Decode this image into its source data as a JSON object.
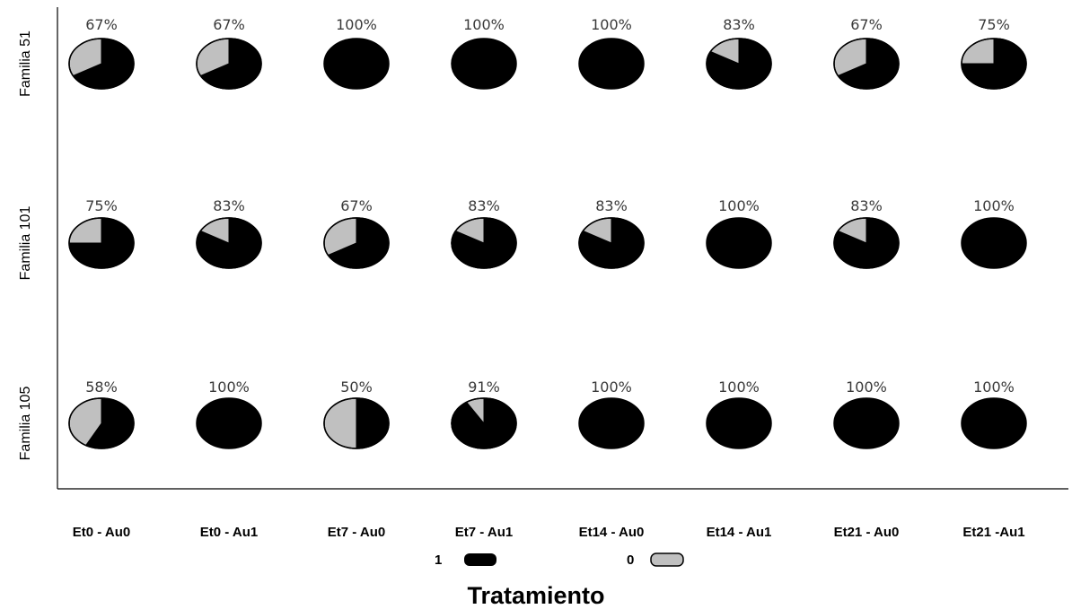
{
  "chart_data": {
    "type": "pie",
    "title": "",
    "xlabel": "Tratamiento",
    "ylabel": "",
    "categories": [
      "Et0 - Au0",
      "Et0 - Au1",
      "Et7 - Au0",
      "Et7 - Au1",
      "Et14 - Au0",
      "Et14 - Au1",
      "Et21 - Au0",
      "Et21 -Au1"
    ],
    "rows": [
      "Familia 51",
      "Familia 101",
      "Familia 105"
    ],
    "series": [
      {
        "name": "Familia 51",
        "values": [
          67,
          67,
          100,
          100,
          100,
          83,
          67,
          75
        ],
        "labels": [
          "67%",
          "67%",
          "100%",
          "100%",
          "100%",
          "83%",
          "67%",
          "75%"
        ]
      },
      {
        "name": "Familia 101",
        "values": [
          75,
          83,
          67,
          83,
          83,
          100,
          83,
          100
        ],
        "labels": [
          "75%",
          "83%",
          "67%",
          "83%",
          "83%",
          "100%",
          "83%",
          "100%"
        ]
      },
      {
        "name": "Familia 105",
        "values": [
          58,
          100,
          50,
          91,
          100,
          100,
          100,
          100
        ],
        "labels": [
          "58%",
          "100%",
          "50%",
          "91%",
          "100%",
          "100%",
          "100%",
          "100%"
        ]
      }
    ],
    "legend": [
      {
        "label": "1",
        "color": "#000000"
      },
      {
        "label": "0",
        "color": "#c0c0c0"
      }
    ],
    "legend_position": "bottom",
    "grid": false
  },
  "colors": {
    "one": "#000000",
    "zero": "#c0c0c0",
    "axis": "#000000"
  }
}
